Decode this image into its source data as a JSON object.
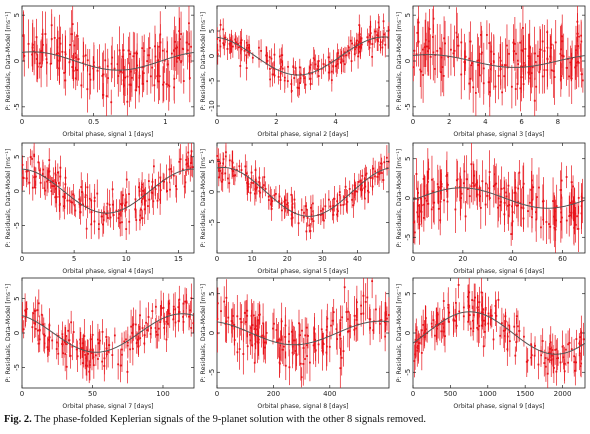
{
  "caption": {
    "label": "Fig. 2.",
    "text": "The phase-folded Keplerian signals of the 9-planet solution with the other 8 signals removed."
  },
  "style": {
    "point_color": "#e8141b",
    "curve_color": "#555555",
    "axis_color": "#222222"
  },
  "chart_data": [
    {
      "type": "scatter",
      "xlabel": "Orbital phase, signal 1 [days]",
      "ylabel": "P: Residuals, Data-Model [ms⁻¹]",
      "xlim": [
        0,
        1.2
      ],
      "ylim": [
        -6,
        6
      ],
      "xticks": [
        "0",
        "0.5",
        "1"
      ],
      "yticks": [
        "-5",
        "0",
        "5"
      ],
      "model": {
        "amplitude": 1.0,
        "phase": 1.2
      },
      "scatter": 1.6,
      "errbar": 2.0
    },
    {
      "type": "scatter",
      "xlabel": "Orbital phase, signal 2 [days]",
      "ylabel": "P: Residuals, Data-Model [ms⁻¹]",
      "xlim": [
        0,
        5.8
      ],
      "ylim": [
        -12,
        10
      ],
      "xticks": [
        "0",
        "2",
        "4"
      ],
      "yticks": [
        "-10",
        "-5",
        "0",
        "5"
      ],
      "model": {
        "amplitude": 3.8,
        "phase": 1.75
      },
      "scatter": 1.6,
      "errbar": 1.8
    },
    {
      "type": "scatter",
      "xlabel": "Orbital phase, signal 3 [days]",
      "ylabel": "P: Residuals, Data-Model [ms⁻¹]",
      "xlim": [
        0,
        9.5
      ],
      "ylim": [
        -6,
        6
      ],
      "xticks": [
        "0",
        "2",
        "4",
        "6",
        "8"
      ],
      "yticks": [
        "-5",
        "0",
        "5"
      ],
      "model": {
        "amplitude": 0.7,
        "phase": 1.0
      },
      "scatter": 1.8,
      "errbar": 2.2
    },
    {
      "type": "scatter",
      "xlabel": "Orbital phase, signal 4 [days]",
      "ylabel": "P: Residuals, Data-Model [ms⁻¹]",
      "xlim": [
        0,
        16.5
      ],
      "ylim": [
        -9,
        7
      ],
      "xticks": [
        "0",
        "5",
        "10",
        "15"
      ],
      "yticks": [
        "-5",
        "0",
        "5"
      ],
      "model": {
        "amplitude": 3.2,
        "phase": 1.62
      },
      "scatter": 1.4,
      "errbar": 1.6
    },
    {
      "type": "scatter",
      "xlabel": "Orbital phase, signal 5 [days]",
      "ylabel": "P: Residuals, Data-Model [ms⁻¹]",
      "xlim": [
        0,
        49
      ],
      "ylim": [
        -10,
        8
      ],
      "xticks": [
        "0",
        "10",
        "20",
        "30",
        "40"
      ],
      "yticks": [
        "-5",
        "0",
        "5"
      ],
      "model": {
        "amplitude": 4.0,
        "phase": 1.35
      },
      "scatter": 1.2,
      "errbar": 1.5
    },
    {
      "type": "scatter",
      "xlabel": "Orbital phase, signal 6 [days]",
      "ylabel": "P: Residuals, Data-Model [ms⁻¹]",
      "xlim": [
        0,
        69
      ],
      "ylim": [
        -7,
        7
      ],
      "xticks": [
        "0",
        "20",
        "40",
        "60"
      ],
      "yticks": [
        "-5",
        "0",
        "5"
      ],
      "model": {
        "amplitude": 1.3,
        "phase": -0.2
      },
      "scatter": 1.8,
      "errbar": 2.2
    },
    {
      "type": "scatter",
      "xlabel": "Orbital phase, signal 7 [days]",
      "ylabel": "P: Residuals, Data-Model [ms⁻¹]",
      "xlim": [
        0,
        122
      ],
      "ylim": [
        -8,
        8
      ],
      "xticks": [
        "0",
        "50",
        "100"
      ],
      "yticks": [
        "-5",
        "0",
        "5"
      ],
      "model": {
        "amplitude": 2.8,
        "phase": 2.0
      },
      "scatter": 1.5,
      "errbar": 1.8
    },
    {
      "type": "scatter",
      "xlabel": "Orbital phase, signal 8 [days]",
      "ylabel": "P: Residuals, Data-Model [ms⁻¹]",
      "xlim": [
        0,
        610
      ],
      "ylim": [
        -7,
        7
      ],
      "xticks": [
        "0",
        "200",
        "400"
      ],
      "yticks": [
        "-5",
        "0",
        "5"
      ],
      "model": {
        "amplitude": 1.5,
        "phase": 1.9
      },
      "scatter": 1.8,
      "errbar": 2.0
    },
    {
      "type": "scatter",
      "xlabel": "Orbital phase, signal 9 [days]",
      "ylabel": "P: Residuals, Data-Model [ms⁻¹]",
      "xlim": [
        0,
        2300
      ],
      "ylim": [
        -7,
        7
      ],
      "xticks": [
        "0",
        "500",
        "1000",
        "1500",
        "2000"
      ],
      "yticks": [
        "-5",
        "0",
        "5"
      ],
      "model": {
        "amplitude": 2.7,
        "phase": -0.5
      },
      "scatter": 1.3,
      "errbar": 1.6
    }
  ]
}
